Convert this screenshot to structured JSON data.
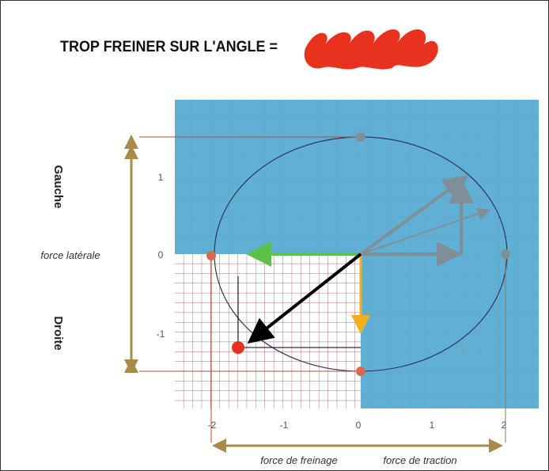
{
  "header": {
    "title": "TROP FREINER SUR L'ANGLE ="
  },
  "labels": {
    "left_up": "Gauche",
    "left_down": "Droite",
    "lateral": "force latérale",
    "braking": "force de freinage",
    "traction": "force de traction"
  },
  "y_ticks": [
    "1",
    "0",
    "-1"
  ],
  "x_ticks": [
    "-2",
    "-1",
    "0",
    "1",
    "2"
  ]
}
